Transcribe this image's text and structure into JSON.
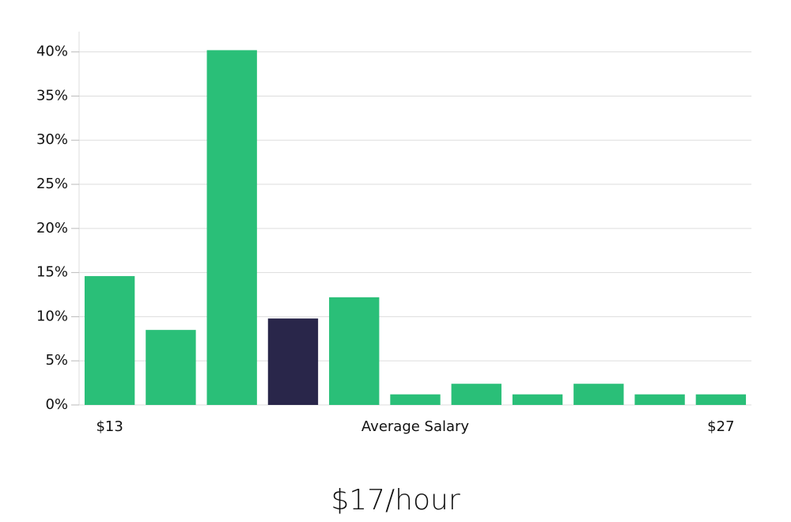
{
  "chart_data": {
    "type": "bar",
    "title": "$17/hour",
    "x_label": "Average Salary",
    "categories": [
      "$13",
      null,
      null,
      null,
      null,
      null,
      null,
      null,
      null,
      null,
      "$27"
    ],
    "values": [
      14.6,
      8.5,
      40.2,
      9.8,
      12.2,
      1.2,
      2.4,
      1.2,
      2.4,
      1.2,
      1.2
    ],
    "colors": [
      "#2abf78",
      "#2abf78",
      "#2abf78",
      "#29264a",
      "#2abf78",
      "#2abf78",
      "#2abf78",
      "#2abf78",
      "#2abf78",
      "#2abf78",
      "#2abf78"
    ],
    "ylim": [
      0,
      42.3
    ],
    "yticks": [
      {
        "value": 0,
        "label": "0%"
      },
      {
        "value": 5,
        "label": "5%"
      },
      {
        "value": 10,
        "label": "10%"
      },
      {
        "value": 15,
        "label": "15%"
      },
      {
        "value": 20,
        "label": "20%"
      },
      {
        "value": 25,
        "label": "25%"
      },
      {
        "value": 30,
        "label": "30%"
      },
      {
        "value": 35,
        "label": "35%"
      },
      {
        "value": 40,
        "label": "40%"
      }
    ],
    "grid": true
  }
}
